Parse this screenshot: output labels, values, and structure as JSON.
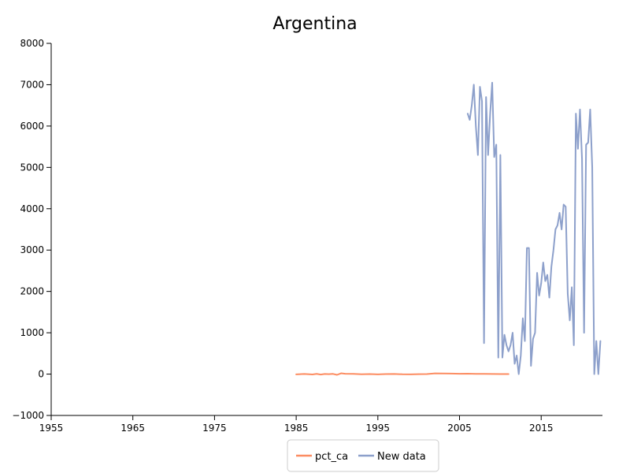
{
  "chart_data": {
    "type": "line",
    "title": "Argentina",
    "xlabel": "",
    "ylabel": "",
    "xlim": [
      1955,
      2022.5
    ],
    "ylim": [
      -1000,
      8000
    ],
    "xticks": [
      1955,
      1965,
      1975,
      1985,
      1995,
      2005,
      2015
    ],
    "yticks": [
      -1000,
      0,
      1000,
      2000,
      3000,
      4000,
      5000,
      6000,
      7000,
      8000
    ],
    "tick_labels_x": [
      "1955",
      "1965",
      "1975",
      "1985",
      "1995",
      "2005",
      "2015"
    ],
    "tick_labels_y": [
      "−1000",
      "0",
      "1000",
      "2000",
      "3000",
      "4000",
      "5000",
      "6000",
      "7000",
      "8000"
    ],
    "grid": false,
    "legend_position": "bottom-center",
    "series": [
      {
        "name": "pct_ca",
        "color": "#fc8d62",
        "x": [
          1985.0,
          1986.0,
          1987.0,
          1987.5,
          1988.0,
          1988.5,
          1989.0,
          1989.5,
          1990.0,
          1990.5,
          1991.0,
          1992.0,
          1993.0,
          1994.0,
          1995.0,
          1996.0,
          1997.0,
          1998.0,
          1999.0,
          2000.0,
          2001.0,
          2002.0,
          2003.0,
          2004.0,
          2005.0,
          2006.0,
          2007.0,
          2008.0,
          2009.0,
          2010.0,
          2011.0
        ],
        "y": [
          -5,
          3,
          -8,
          6,
          -10,
          4,
          -2,
          5,
          -18,
          20,
          8,
          5,
          -3,
          2,
          -6,
          0,
          3,
          -4,
          -5,
          -2,
          1,
          18,
          15,
          12,
          8,
          10,
          5,
          6,
          3,
          1,
          0
        ]
      },
      {
        "name": "New data",
        "color": "#8da0cb",
        "x": [
          2006.0,
          2006.25,
          2006.5,
          2006.75,
          2007.0,
          2007.25,
          2007.5,
          2007.75,
          2008.0,
          2008.25,
          2008.5,
          2008.75,
          2009.0,
          2009.25,
          2009.5,
          2009.75,
          2010.0,
          2010.25,
          2010.5,
          2010.75,
          2011.0,
          2011.25,
          2011.5,
          2011.75,
          2012.0,
          2012.25,
          2012.5,
          2012.75,
          2013.0,
          2013.25,
          2013.5,
          2013.75,
          2014.0,
          2014.25,
          2014.5,
          2014.75,
          2015.0,
          2015.25,
          2015.5,
          2015.75,
          2016.0,
          2016.25,
          2016.5,
          2016.75,
          2017.0,
          2017.25,
          2017.5,
          2017.75,
          2018.0,
          2018.25,
          2018.5,
          2018.75,
          2019.0,
          2019.25,
          2019.5,
          2019.75,
          2020.0,
          2020.25,
          2020.5,
          2020.75,
          2021.0,
          2021.25,
          2021.5,
          2021.75,
          2022.0,
          2022.25
        ],
        "y": [
          6300,
          6150,
          6500,
          7000,
          6000,
          5300,
          6950,
          6600,
          750,
          6700,
          5300,
          6300,
          7050,
          5250,
          5550,
          400,
          5300,
          400,
          950,
          700,
          550,
          700,
          1000,
          250,
          450,
          0,
          450,
          1350,
          800,
          3050,
          3050,
          200,
          850,
          1000,
          2450,
          1900,
          2200,
          2700,
          2250,
          2400,
          1850,
          2600,
          3000,
          3500,
          3600,
          3900,
          3500,
          4100,
          4050,
          1950,
          1300,
          2100,
          700,
          6300,
          5450,
          6400,
          5200,
          1000,
          5550,
          5600,
          6400,
          5000,
          0,
          800,
          0,
          800
        ]
      }
    ]
  }
}
